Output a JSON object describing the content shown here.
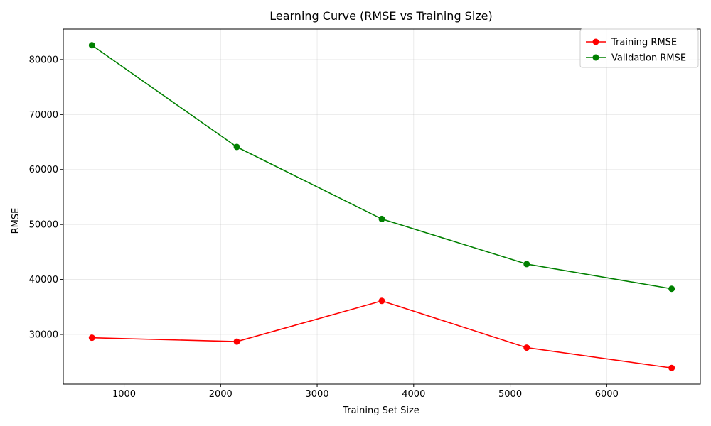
{
  "chart_data": {
    "type": "line",
    "title": "Learning Curve (RMSE vs Training Size)",
    "xlabel": "Training Set Size",
    "ylabel": "RMSE",
    "x": [
      667,
      2168,
      3670,
      5171,
      6673
    ],
    "series": [
      {
        "name": "Training RMSE",
        "color": "#ff0000",
        "values": [
          29400,
          28700,
          36100,
          27600,
          23900
        ]
      },
      {
        "name": "Validation RMSE",
        "color": "#008000",
        "values": [
          82600,
          64100,
          51000,
          42800,
          38300
        ]
      }
    ],
    "xlim": [
      370,
      6970
    ],
    "ylim": [
      20960,
      85540
    ],
    "xticks": [
      1000,
      2000,
      3000,
      4000,
      5000,
      6000
    ],
    "yticks": [
      30000,
      40000,
      50000,
      60000,
      70000,
      80000
    ],
    "xtick_labels": [
      "1000",
      "2000",
      "3000",
      "4000",
      "5000",
      "6000"
    ],
    "ytick_labels": [
      "30000",
      "40000",
      "50000",
      "60000",
      "70000",
      "80000"
    ],
    "grid": true,
    "legend_position": "top-right",
    "marker": "circle"
  }
}
